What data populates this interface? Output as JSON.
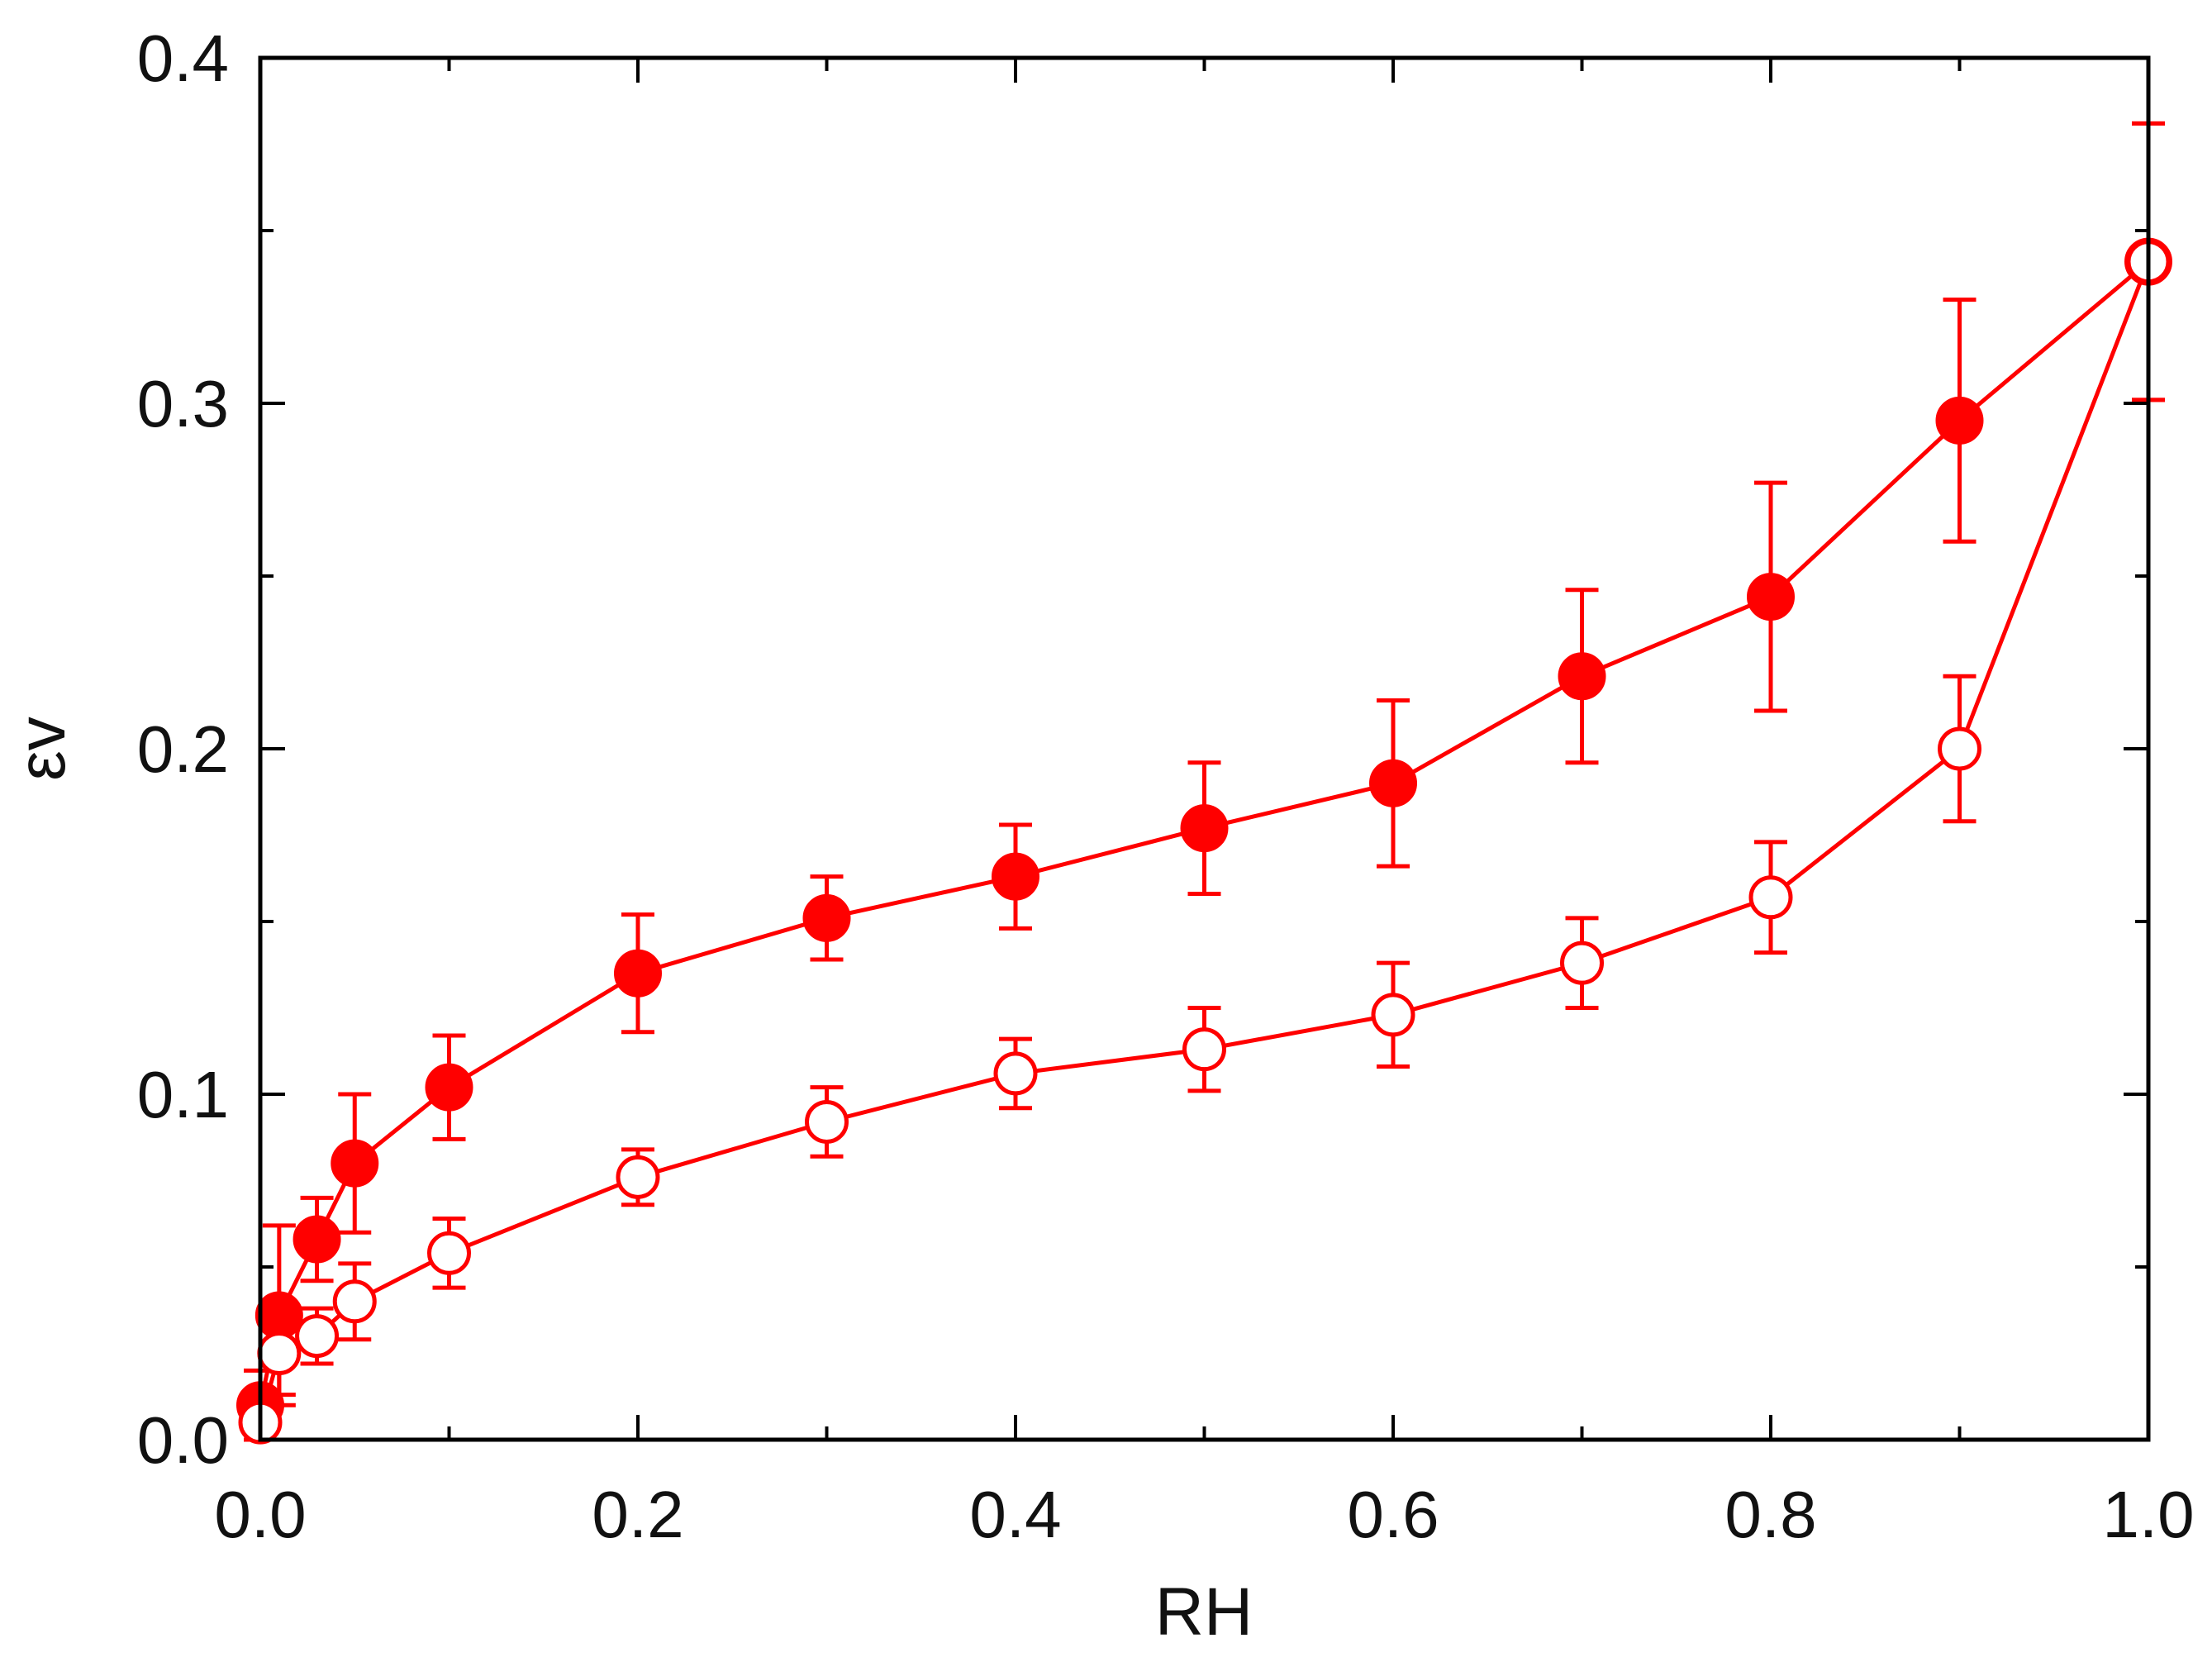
{
  "chart_data": {
    "type": "scatter",
    "xlabel": "RH",
    "ylabel": "εv",
    "xlim": [
      0.0,
      1.0
    ],
    "ylim": [
      0.0,
      0.4
    ],
    "x_ticks": [
      "0.0",
      "0.2",
      "0.4",
      "0.6",
      "0.8",
      "1.0"
    ],
    "y_ticks": [
      "0.0",
      "0.1",
      "0.2",
      "0.3",
      "0.4"
    ],
    "grid": false,
    "legend": "none",
    "color": "#ff0000",
    "series": [
      {
        "marker": "filled-circle",
        "x": [
          0.0,
          0.01,
          0.03,
          0.05,
          0.1,
          0.2,
          0.3,
          0.4,
          0.5,
          0.6,
          0.7,
          0.8,
          0.9,
          1.0
        ],
        "y": [
          0.01,
          0.036,
          0.058,
          0.08,
          0.102,
          0.135,
          0.151,
          0.163,
          0.177,
          0.19,
          0.221,
          0.244,
          0.295,
          0.341
        ],
        "err": [
          0.01,
          0.026,
          0.012,
          0.02,
          0.015,
          0.017,
          0.012,
          0.015,
          0.019,
          0.024,
          0.025,
          0.033,
          0.035,
          0.04
        ]
      },
      {
        "marker": "open-circle",
        "x": [
          0.0,
          0.01,
          0.03,
          0.05,
          0.1,
          0.2,
          0.3,
          0.4,
          0.5,
          0.6,
          0.7,
          0.8,
          0.9,
          1.0
        ],
        "y": [
          0.005,
          0.025,
          0.03,
          0.04,
          0.054,
          0.076,
          0.092,
          0.106,
          0.113,
          0.123,
          0.138,
          0.157,
          0.2,
          0.341
        ],
        "err": [
          0.005,
          0.012,
          0.008,
          0.011,
          0.01,
          0.008,
          0.01,
          0.01,
          0.012,
          0.015,
          0.013,
          0.016,
          0.021,
          0.04
        ]
      }
    ]
  }
}
